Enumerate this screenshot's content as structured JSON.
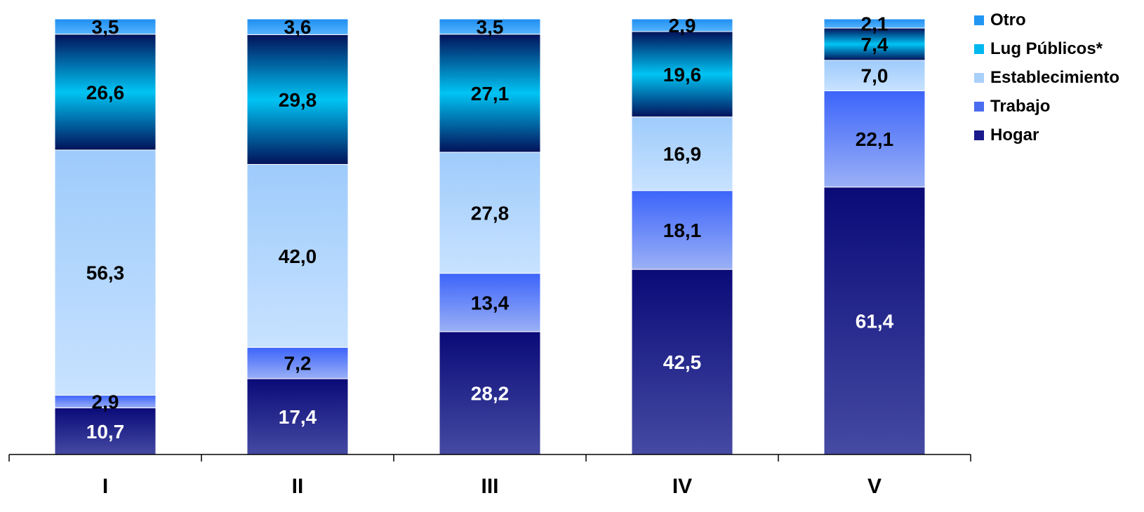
{
  "chart_data": {
    "type": "bar",
    "stacked": true,
    "categories": [
      "I",
      "II",
      "III",
      "IV",
      "V"
    ],
    "ylim": [
      0,
      100
    ],
    "grid": false,
    "legend_position": "top-right",
    "series": [
      {
        "name": "Hogar",
        "values": [
          10.7,
          17.4,
          28.2,
          42.5,
          61.4
        ],
        "labels": [
          "10,7",
          "17,4",
          "28,2",
          "42,5",
          "61,4"
        ],
        "color": "#1a1a8c"
      },
      {
        "name": "Trabajo",
        "values": [
          2.9,
          7.2,
          13.4,
          18.1,
          22.1
        ],
        "labels": [
          "2,9",
          "7,2",
          "13,4",
          "18,1",
          "22,1"
        ],
        "color": "#4a6cf0"
      },
      {
        "name": "Establecimiento",
        "values": [
          56.3,
          42.0,
          27.8,
          16.9,
          7.0
        ],
        "labels": [
          "56,3",
          "42,0",
          "27,8",
          "16,9",
          "7,0"
        ],
        "color": "#a8d0fa"
      },
      {
        "name": "Lug Públicos*",
        "values": [
          26.6,
          29.8,
          27.1,
          19.6,
          7.4
        ],
        "labels": [
          "26,6",
          "29,8",
          "27,1",
          "19,6",
          "7,4"
        ],
        "color": "#00b8f0"
      },
      {
        "name": "Otro",
        "values": [
          3.5,
          3.6,
          3.5,
          2.9,
          2.1
        ],
        "labels": [
          "3,5",
          "3,6",
          "3,5",
          "2,9",
          "2,1"
        ],
        "color": "#2196f3"
      }
    ],
    "legend_order": [
      "Otro",
      "Lug Públicos*",
      "Establecimiento",
      "Trabajo",
      "Hogar"
    ]
  }
}
